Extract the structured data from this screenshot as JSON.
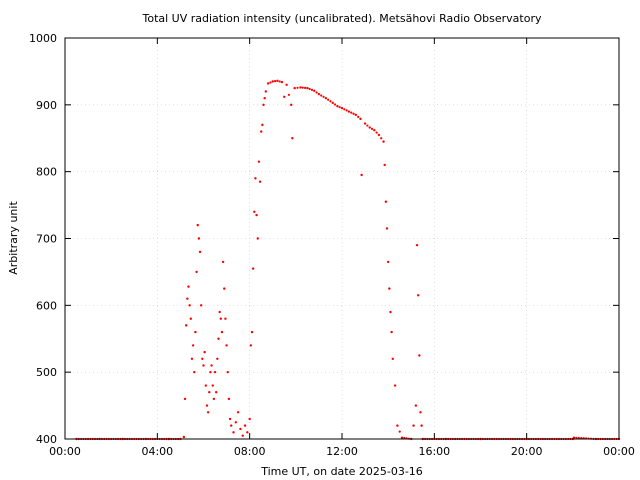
{
  "chart_data": {
    "type": "scatter",
    "title": "Total UV radiation intensity (uncalibrated). Metsähovi Radio Observatory",
    "xlabel": "Time UT, on date 2025-03-16",
    "ylabel": "Arbitrary unit",
    "xlim": [
      0,
      24
    ],
    "ylim": [
      400,
      1000
    ],
    "x_tick_values": [
      0,
      4,
      8,
      12,
      16,
      20,
      24
    ],
    "x_tick_labels": [
      "00:00",
      "04:00",
      "08:00",
      "12:00",
      "16:00",
      "20:00",
      "00:00"
    ],
    "y_tick_values": [
      400,
      500,
      600,
      700,
      800,
      900,
      1000
    ],
    "y_tick_labels": [
      "400",
      "500",
      "600",
      "700",
      "800",
      "900",
      "1000"
    ],
    "grid": true,
    "marker_color": "#ff0000",
    "series": [
      {
        "values": [
          [
            0.5,
            400
          ],
          [
            1.5,
            400
          ],
          [
            2.5,
            400
          ],
          [
            3.5,
            400
          ],
          [
            4.5,
            400
          ],
          [
            5.0,
            400
          ],
          [
            5.15,
            403
          ],
          [
            5.2,
            460
          ],
          [
            5.25,
            570
          ],
          [
            5.3,
            610
          ],
          [
            5.35,
            628
          ],
          [
            5.4,
            600
          ],
          [
            5.45,
            580
          ],
          [
            5.5,
            520
          ],
          [
            5.55,
            540
          ],
          [
            5.6,
            500
          ],
          [
            5.65,
            560
          ],
          [
            5.7,
            650
          ],
          [
            5.75,
            720
          ],
          [
            5.8,
            700
          ],
          [
            5.85,
            680
          ],
          [
            5.9,
            600
          ],
          [
            5.95,
            520
          ],
          [
            6.0,
            510
          ],
          [
            6.05,
            530
          ],
          [
            6.1,
            480
          ],
          [
            6.15,
            450
          ],
          [
            6.2,
            440
          ],
          [
            6.25,
            470
          ],
          [
            6.3,
            500
          ],
          [
            6.35,
            510
          ],
          [
            6.4,
            480
          ],
          [
            6.45,
            460
          ],
          [
            6.5,
            500
          ],
          [
            6.55,
            470
          ],
          [
            6.6,
            520
          ],
          [
            6.65,
            550
          ],
          [
            6.7,
            590
          ],
          [
            6.75,
            580
          ],
          [
            6.8,
            560
          ],
          [
            6.85,
            665
          ],
          [
            6.9,
            625
          ],
          [
            6.95,
            580
          ],
          [
            7.0,
            540
          ],
          [
            7.05,
            500
          ],
          [
            7.1,
            460
          ],
          [
            7.15,
            430
          ],
          [
            7.2,
            420
          ],
          [
            7.3,
            410
          ],
          [
            7.4,
            425
          ],
          [
            7.5,
            440
          ],
          [
            7.6,
            415
          ],
          [
            7.7,
            405
          ],
          [
            7.8,
            420
          ],
          [
            7.9,
            410
          ],
          [
            8.0,
            430
          ],
          [
            8.05,
            540
          ],
          [
            8.1,
            560
          ],
          [
            8.15,
            655
          ],
          [
            8.2,
            740
          ],
          [
            8.25,
            790
          ],
          [
            8.3,
            735
          ],
          [
            8.35,
            700
          ],
          [
            8.4,
            815
          ],
          [
            8.45,
            785
          ],
          [
            8.5,
            860
          ],
          [
            8.55,
            870
          ],
          [
            8.6,
            900
          ],
          [
            8.65,
            910
          ],
          [
            8.7,
            920
          ],
          [
            8.8,
            932
          ],
          [
            9.0,
            935
          ],
          [
            9.2,
            936
          ],
          [
            9.4,
            934
          ],
          [
            9.5,
            912
          ],
          [
            9.6,
            930
          ],
          [
            9.8,
            900
          ],
          [
            9.85,
            850
          ],
          [
            9.95,
            925
          ],
          [
            10.2,
            926
          ],
          [
            10.5,
            925
          ],
          [
            10.8,
            921
          ],
          [
            11.0,
            916
          ],
          [
            11.3,
            910
          ],
          [
            11.6,
            903
          ],
          [
            11.8,
            898
          ],
          [
            12.0,
            895
          ],
          [
            12.3,
            890
          ],
          [
            12.6,
            885
          ],
          [
            12.8,
            879
          ],
          [
            12.85,
            795
          ],
          [
            13.0,
            872
          ],
          [
            13.2,
            866
          ],
          [
            13.4,
            862
          ],
          [
            13.6,
            855
          ],
          [
            13.8,
            845
          ],
          [
            13.85,
            810
          ],
          [
            13.9,
            755
          ],
          [
            13.95,
            715
          ],
          [
            14.0,
            665
          ],
          [
            14.05,
            625
          ],
          [
            14.1,
            590
          ],
          [
            14.15,
            560
          ],
          [
            14.2,
            520
          ],
          [
            14.3,
            480
          ],
          [
            14.4,
            420
          ],
          [
            14.6,
            402
          ],
          [
            15.0,
            400
          ],
          [
            15.1,
            420
          ],
          [
            15.2,
            450
          ],
          [
            15.25,
            690
          ],
          [
            15.3,
            615
          ],
          [
            15.35,
            525
          ],
          [
            15.4,
            440
          ],
          [
            15.45,
            420
          ],
          [
            15.5,
            400
          ],
          [
            16.5,
            400
          ],
          [
            18.0,
            400
          ],
          [
            20.0,
            400
          ],
          [
            22.0,
            400
          ],
          [
            22.05,
            402
          ],
          [
            23.0,
            400
          ],
          [
            24.0,
            400
          ]
        ]
      }
    ]
  }
}
